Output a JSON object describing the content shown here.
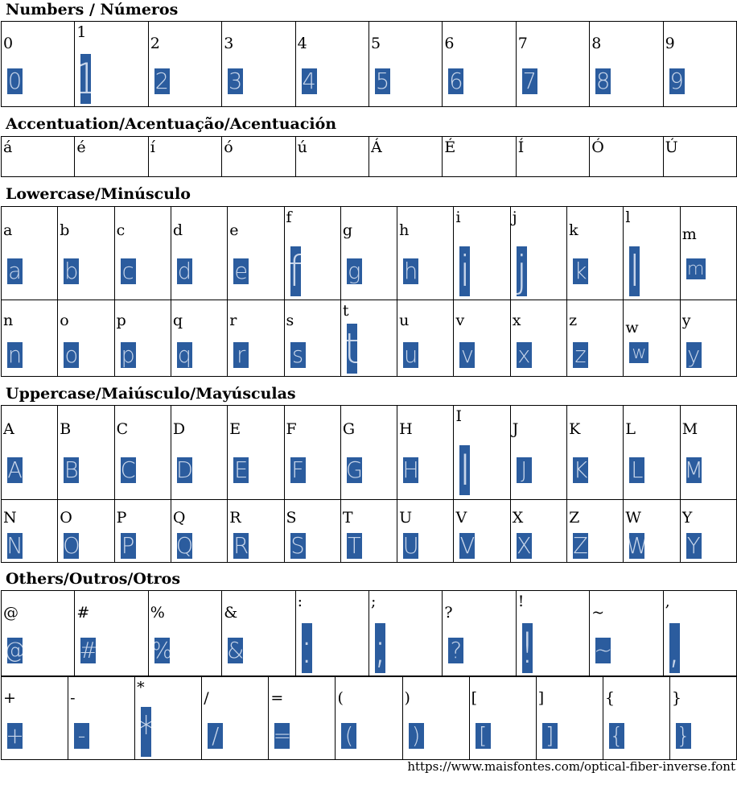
{
  "sections": [
    {
      "title": "Numbers / Números"
    },
    {
      "title": "Accentuation/Acentuação/Acentuación"
    },
    {
      "title": "Lowercase/Minúsculo"
    },
    {
      "title": "Uppercase/Maiúsculo/Mayúsculas"
    },
    {
      "title": "Others/Outros/Otros"
    }
  ],
  "rows": [
    {
      "chars": [
        "0",
        "1",
        "2",
        "3",
        "4",
        "5",
        "6",
        "7",
        "8",
        "9"
      ]
    },
    {
      "chars": [
        "á",
        "é",
        "í",
        "ó",
        "ú",
        "Á",
        "É",
        "Í",
        "Ó",
        "Ú"
      ]
    },
    {
      "chars": [
        "a",
        "b",
        "c",
        "d",
        "e",
        "f",
        "g",
        "h",
        "i",
        "j",
        "k",
        "l",
        "m"
      ]
    },
    {
      "chars": [
        "n",
        "o",
        "p",
        "q",
        "r",
        "s",
        "t",
        "u",
        "v",
        "x",
        "z",
        "w",
        "y"
      ]
    },
    {
      "chars": [
        "A",
        "B",
        "C",
        "D",
        "E",
        "F",
        "G",
        "H",
        "I",
        "J",
        "K",
        "L",
        "M"
      ]
    },
    {
      "chars": [
        "N",
        "O",
        "P",
        "Q",
        "R",
        "S",
        "T",
        "U",
        "V",
        "X",
        "Z",
        "W",
        "Y"
      ]
    },
    {
      "chars": [
        "@",
        "#",
        "%",
        "&",
        ":",
        ";",
        "?",
        "!",
        "~",
        ","
      ]
    },
    {
      "chars": [
        "+",
        "-",
        "*",
        "/",
        "=",
        "(",
        ")",
        "[",
        "]",
        "{",
        "}"
      ]
    }
  ],
  "footer": {
    "url": "https://www.maisfontes.com/optical-fiber-inverse.font"
  }
}
